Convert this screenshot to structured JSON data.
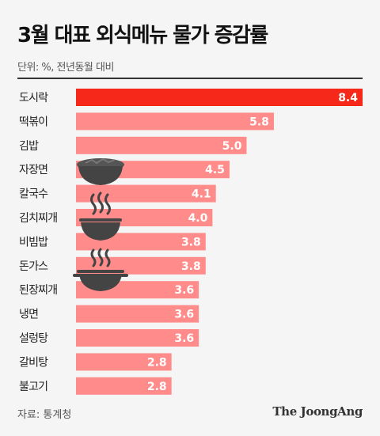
{
  "title": "3월 대표 외식메뉴 물가 증감률",
  "unit_note": "단위: %, 전년동월 대비",
  "source": "자료: 통계청",
  "logo": "The JoongAng",
  "colors": {
    "highlight": "#f5281a",
    "bar": "#ff8c8a",
    "icon": "#444444"
  },
  "icons": [
    "bowl-icon",
    "steaming-bowl-icon",
    "steaming-pot-icon"
  ],
  "chart_data": {
    "type": "bar",
    "orientation": "horizontal",
    "categories": [
      "도시락",
      "떡볶이",
      "김밥",
      "자장면",
      "칼국수",
      "김치찌개",
      "비빔밥",
      "돈가스",
      "된장찌개",
      "냉면",
      "설렁탕",
      "갈비탕",
      "불고기"
    ],
    "values": [
      8.4,
      5.8,
      5.0,
      4.5,
      4.1,
      4.0,
      3.8,
      3.8,
      3.6,
      3.6,
      3.6,
      2.8,
      2.8
    ],
    "value_labels": [
      "8.4",
      "5.8",
      "5.0",
      "4.5",
      "4.1",
      "4.0",
      "3.8",
      "3.8",
      "3.6",
      "3.6",
      "3.6",
      "2.8",
      "2.8"
    ],
    "highlight_index": 0,
    "xlim": [
      0,
      8.4
    ],
    "grid": false,
    "legend": "none"
  }
}
